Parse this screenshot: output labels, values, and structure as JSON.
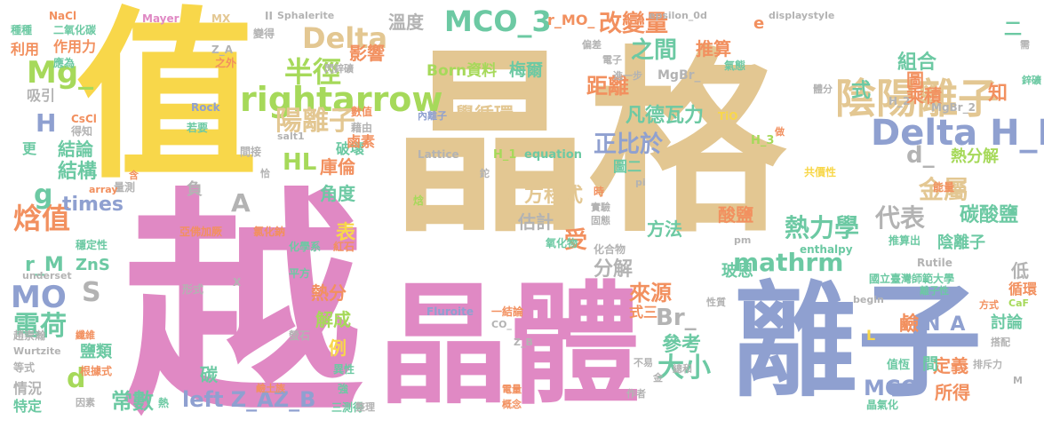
{
  "palette": {
    "tan": "#e3c792",
    "pink": "#e089c4",
    "yellow": "#f8d74a",
    "blue": "#8fa0d0",
    "green": "#6cc9a3",
    "orange": "#f2905f",
    "lime": "#a6d95a",
    "gray": "#b3b3b3"
  },
  "words": [
    {
      "text": "晶格",
      "color": "tan"
    },
    {
      "text": "越",
      "color": "pink"
    },
    {
      "text": "值",
      "color": "yellow"
    },
    {
      "text": "離子",
      "color": "blue"
    },
    {
      "text": "晶體",
      "color": "pink"
    },
    {
      "text": "陰陽離子",
      "color": "tan"
    },
    {
      "text": "Delta H_L",
      "color": "blue"
    },
    {
      "text": "rightarrow",
      "color": "lime"
    },
    {
      "text": "MCO_3",
      "color": "green"
    },
    {
      "text": "Delta",
      "color": "tan"
    },
    {
      "text": "半徑",
      "color": "lime"
    },
    {
      "text": "陽離子",
      "color": "tan"
    },
    {
      "text": "電荷",
      "color": "green"
    },
    {
      "text": "焓值",
      "color": "orange"
    },
    {
      "text": "mathrm",
      "color": "green"
    },
    {
      "text": "熱力學",
      "color": "green"
    },
    {
      "text": "Mg_",
      "color": "lime"
    },
    {
      "text": "MO",
      "color": "blue"
    },
    {
      "text": "大小",
      "color": "green"
    },
    {
      "text": "left Z_AZ_B",
      "color": "blue"
    },
    {
      "text": "改變量",
      "color": "orange"
    },
    {
      "text": "之間",
      "color": "green"
    },
    {
      "text": "距離",
      "color": "orange"
    },
    {
      "text": "凡德瓦力",
      "color": "green"
    },
    {
      "text": "正比於",
      "color": "blue"
    },
    {
      "text": "金屬",
      "color": "tan"
    },
    {
      "text": "代表",
      "color": "gray"
    },
    {
      "text": "碳酸鹽",
      "color": "green"
    },
    {
      "text": "陰離子",
      "color": "green"
    },
    {
      "text": "Born資料",
      "color": "lime"
    },
    {
      "text": "梅爾",
      "color": "green"
    },
    {
      "text": "學循環",
      "color": "tan"
    },
    {
      "text": "HL",
      "color": "lime"
    },
    {
      "text": "庫倫",
      "color": "orange"
    },
    {
      "text": "影響",
      "color": "orange"
    },
    {
      "text": "溫度",
      "color": "gray"
    },
    {
      "text": "組合",
      "color": "green"
    },
    {
      "text": "乘積",
      "color": "orange"
    },
    {
      "text": "式",
      "color": "green"
    },
    {
      "text": "圖",
      "color": "orange"
    },
    {
      "text": "d_",
      "color": "gray"
    },
    {
      "text": "熱分解",
      "color": "lime"
    },
    {
      "text": "結構",
      "color": "green"
    },
    {
      "text": "結論",
      "color": "green"
    },
    {
      "text": "times",
      "color": "blue"
    },
    {
      "text": "角度",
      "color": "green"
    },
    {
      "text": "方程式",
      "color": "tan"
    },
    {
      "text": "估計",
      "color": "gray"
    },
    {
      "text": "受",
      "color": "orange"
    },
    {
      "text": "分解",
      "color": "gray"
    },
    {
      "text": "方法",
      "color": "green"
    },
    {
      "text": "酸鹽",
      "color": "orange"
    },
    {
      "text": "玻恩",
      "color": "green"
    },
    {
      "text": "Br_",
      "color": "gray"
    },
    {
      "text": "參考",
      "color": "green"
    },
    {
      "text": "來源",
      "color": "orange"
    },
    {
      "text": "式三",
      "color": "orange"
    },
    {
      "text": "MCO",
      "color": "blue"
    },
    {
      "text": "所得",
      "color": "orange"
    },
    {
      "text": "討論",
      "color": "green"
    },
    {
      "text": "常數",
      "color": "green"
    },
    {
      "text": "d",
      "color": "lime"
    },
    {
      "text": "S",
      "color": "gray"
    },
    {
      "text": "g",
      "color": "green"
    },
    {
      "text": "H",
      "color": "blue"
    },
    {
      "text": "A",
      "color": "gray"
    },
    {
      "text": "r_M",
      "color": "green"
    },
    {
      "text": "ZnS",
      "color": "green"
    },
    {
      "text": "利用",
      "color": "orange"
    },
    {
      "text": "作用力",
      "color": "orange"
    },
    {
      "text": "吸引",
      "color": "gray"
    },
    {
      "text": "鹼",
      "color": "orange"
    },
    {
      "text": "N_A",
      "color": "blue"
    },
    {
      "text": "定義",
      "color": "orange"
    },
    {
      "text": "間",
      "color": "green"
    },
    {
      "text": "表",
      "color": "yellow"
    },
    {
      "text": "負",
      "color": "gray"
    },
    {
      "text": "r_MO_",
      "color": "orange"
    },
    {
      "text": "推算",
      "color": "orange"
    },
    {
      "text": "e",
      "color": "orange"
    },
    {
      "text": "二",
      "color": "green"
    },
    {
      "text": "知",
      "color": "orange"
    },
    {
      "text": "低",
      "color": "gray"
    },
    {
      "text": "循環",
      "color": "orange"
    },
    {
      "text": "解成",
      "color": "lime"
    },
    {
      "text": "例",
      "color": "yellow"
    },
    {
      "text": "鹽類",
      "color": "green"
    },
    {
      "text": "熱分",
      "color": "orange"
    },
    {
      "text": "碳",
      "color": "green"
    },
    {
      "text": "情況",
      "color": "gray"
    },
    {
      "text": "特定",
      "color": "green"
    },
    {
      "text": "更",
      "color": "green"
    },
    {
      "text": "破壞",
      "color": "green"
    },
    {
      "text": "鹵素",
      "color": "orange"
    },
    {
      "text": "圖二",
      "color": "green"
    },
    {
      "text": "NaCl",
      "color": "orange"
    },
    {
      "text": "Mayer",
      "color": "pink"
    },
    {
      "text": "MX",
      "color": "tan"
    },
    {
      "text": "Sphalerite",
      "color": "gray"
    },
    {
      "text": "epsilon_0d",
      "color": "gray"
    },
    {
      "text": "displaystyle",
      "color": "gray"
    },
    {
      "text": "種種",
      "color": "green"
    },
    {
      "text": "二氧化碳",
      "color": "green"
    },
    {
      "text": "應為",
      "color": "green"
    },
    {
      "text": "Z_A",
      "color": "gray"
    },
    {
      "text": "之外",
      "color": "orange"
    },
    {
      "text": "變得",
      "color": "gray"
    },
    {
      "text": "閃鋅礦",
      "color": "gray"
    },
    {
      "text": "電子",
      "color": "gray"
    },
    {
      "text": "偏差",
      "color": "gray"
    },
    {
      "text": "MgBr_",
      "color": "gray"
    },
    {
      "text": "氣態",
      "color": "green"
    },
    {
      "text": "需",
      "color": "gray"
    },
    {
      "text": "鋅礦",
      "color": "green"
    },
    {
      "text": "進一步",
      "color": "gray"
    },
    {
      "text": "體分",
      "color": "gray"
    },
    {
      "text": "H_2",
      "color": "gray"
    },
    {
      "text": "MgBr_2",
      "color": "gray"
    },
    {
      "text": "Rock",
      "color": "blue"
    },
    {
      "text": "數值",
      "color": "orange"
    },
    {
      "text": "藉由",
      "color": "gray"
    },
    {
      "text": "若要",
      "color": "green"
    },
    {
      "text": "CsCl",
      "color": "orange"
    },
    {
      "text": "得知",
      "color": "gray"
    },
    {
      "text": "salt1",
      "color": "gray"
    },
    {
      "text": "間接",
      "color": "gray"
    },
    {
      "text": "Lattice",
      "color": "gray"
    },
    {
      "text": "H_1",
      "color": "lime"
    },
    {
      "text": "equation",
      "color": "green"
    },
    {
      "text": "TiO",
      "color": "yellow"
    },
    {
      "text": "做",
      "color": "orange"
    },
    {
      "text": "H_3",
      "color": "lime"
    },
    {
      "text": "共價性",
      "color": "yellow"
    },
    {
      "text": "能量",
      "color": "orange"
    },
    {
      "text": "Rutile",
      "color": "gray"
    },
    {
      "text": "內離子",
      "color": "blue"
    },
    {
      "text": "時",
      "color": "orange"
    },
    {
      "text": "pi",
      "color": "gray"
    },
    {
      "text": "實驗",
      "color": "gray"
    },
    {
      "text": "固態",
      "color": "gray"
    },
    {
      "text": "氧化物",
      "color": "green"
    },
    {
      "text": "化合物",
      "color": "gray"
    },
    {
      "text": "推算出",
      "color": "green"
    },
    {
      "text": "enthalpy",
      "color": "green"
    },
    {
      "text": "pm",
      "color": "gray"
    },
    {
      "text": "國立臺灣師範大學",
      "color": "green"
    },
    {
      "text": "離子性",
      "color": "green"
    },
    {
      "text": "性質",
      "color": "gray"
    },
    {
      "text": "總和",
      "color": "gray"
    },
    {
      "text": "作者",
      "color": "gray"
    },
    {
      "text": "一結論",
      "color": "orange"
    },
    {
      "text": "CO_",
      "color": "gray"
    },
    {
      "text": "Z_B",
      "color": "gray"
    },
    {
      "text": "不易",
      "color": "gray"
    },
    {
      "text": "金",
      "color": "gray"
    },
    {
      "text": "值恆",
      "color": "green"
    },
    {
      "text": "晶氣化",
      "color": "green"
    },
    {
      "text": "方式",
      "color": "orange"
    },
    {
      "text": "CaF",
      "color": "lime"
    },
    {
      "text": "搭配",
      "color": "gray"
    },
    {
      "text": "排斥力",
      "color": "gray"
    },
    {
      "text": "M",
      "color": "gray"
    },
    {
      "text": "begin",
      "color": "gray"
    },
    {
      "text": "L",
      "color": "yellow"
    },
    {
      "text": "Fluroite",
      "color": "blue"
    },
    {
      "text": "電量",
      "color": "orange"
    },
    {
      "text": "概念",
      "color": "orange"
    },
    {
      "text": "三測得",
      "color": "green"
    },
    {
      "text": "熱",
      "color": "green"
    },
    {
      "text": "因素",
      "color": "gray"
    },
    {
      "text": "鹼土族",
      "color": "orange"
    },
    {
      "text": "等式",
      "color": "gray"
    },
    {
      "text": "Wurtzite",
      "color": "gray"
    },
    {
      "text": "根據式",
      "color": "orange"
    },
    {
      "text": "趙崇瀚",
      "color": "gray"
    },
    {
      "text": "纖維",
      "color": "orange"
    },
    {
      "text": "螢石",
      "color": "gray"
    },
    {
      "text": "X",
      "color": "gray"
    },
    {
      "text": "平方",
      "color": "green"
    },
    {
      "text": "形式",
      "color": "gray"
    },
    {
      "text": "underset",
      "color": "gray"
    },
    {
      "text": "穩定性",
      "color": "green"
    },
    {
      "text": "紅石",
      "color": "orange"
    },
    {
      "text": "化學系",
      "color": "green"
    },
    {
      "text": "氯化鈉",
      "color": "orange"
    },
    {
      "text": "亞佛加厥",
      "color": "orange"
    },
    {
      "text": "量測",
      "color": "gray"
    },
    {
      "text": "array",
      "color": "orange"
    },
    {
      "text": "含",
      "color": "orange"
    },
    {
      "text": "恰",
      "color": "gray"
    },
    {
      "text": "焓",
      "color": "lime"
    },
    {
      "text": "II",
      "color": "gray"
    },
    {
      "text": "異性",
      "color": "green"
    },
    {
      "text": "強",
      "color": "green"
    },
    {
      "text": "整理",
      "color": "gray"
    },
    {
      "text": "鉈",
      "color": "gray"
    }
  ]
}
